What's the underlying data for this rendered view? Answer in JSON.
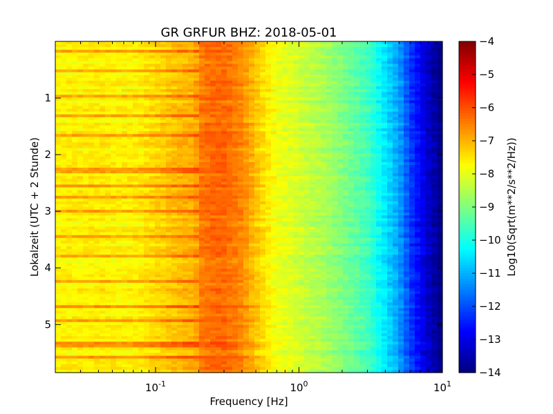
{
  "chart_data": {
    "type": "heatmap",
    "title": "GR GRFUR BHZ: 2018-05-01",
    "xlabel": "Frequency [Hz]",
    "ylabel": "Lokalzeit (UTC + 2 Stunde)",
    "colorbar_label": "Log10(Sqrt(m**2/s**2/Hz))",
    "x_scale": "log",
    "xlim": [
      0.02,
      10
    ],
    "ylim": [
      5.85,
      0
    ],
    "y_inverted": true,
    "clim": [
      -14,
      -4
    ],
    "colormap": "jet",
    "x_ticks": [
      {
        "value": 0.1,
        "base": "10",
        "exp": "-1"
      },
      {
        "value": 1,
        "base": "10",
        "exp": "0"
      },
      {
        "value": 10,
        "base": "10",
        "exp": "1"
      }
    ],
    "y_ticks": [
      {
        "value": 1,
        "label": "1"
      },
      {
        "value": 2,
        "label": "2"
      },
      {
        "value": 3,
        "label": "3"
      },
      {
        "value": 4,
        "label": "4"
      },
      {
        "value": 5,
        "label": "5"
      }
    ],
    "colorbar_ticks": [
      {
        "value": -4,
        "label": "−4"
      },
      {
        "value": -5,
        "label": "−5"
      },
      {
        "value": -6,
        "label": "−6"
      },
      {
        "value": -7,
        "label": "−7"
      },
      {
        "value": -8,
        "label": "−8"
      },
      {
        "value": -9,
        "label": "−9"
      },
      {
        "value": -10,
        "label": "−10"
      },
      {
        "value": -11,
        "label": "−11"
      },
      {
        "value": -12,
        "label": "−12"
      },
      {
        "value": -13,
        "label": "−13"
      },
      {
        "value": -14,
        "label": "−14"
      }
    ],
    "frequency_profile": [
      {
        "f": 0.02,
        "v": -7.7
      },
      {
        "f": 0.04,
        "v": -7.6
      },
      {
        "f": 0.06,
        "v": -7.7
      },
      {
        "f": 0.08,
        "v": -7.6
      },
      {
        "f": 0.1,
        "v": -7.4
      },
      {
        "f": 0.15,
        "v": -7.1
      },
      {
        "f": 0.19,
        "v": -7.0
      },
      {
        "f": 0.2,
        "v": -6.5
      },
      {
        "f": 0.25,
        "v": -6.3
      },
      {
        "f": 0.3,
        "v": -6.3
      },
      {
        "f": 0.4,
        "v": -6.6
      },
      {
        "f": 0.5,
        "v": -7.2
      },
      {
        "f": 0.7,
        "v": -7.9
      },
      {
        "f": 1.0,
        "v": -8.2
      },
      {
        "f": 1.5,
        "v": -8.6
      },
      {
        "f": 2.0,
        "v": -9.0
      },
      {
        "f": 3.0,
        "v": -9.6
      },
      {
        "f": 4.0,
        "v": -10.5
      },
      {
        "f": 5.0,
        "v": -11.2
      },
      {
        "f": 6.0,
        "v": -12.2
      },
      {
        "f": 7.0,
        "v": -12.8
      },
      {
        "f": 8.0,
        "v": -13.3
      },
      {
        "f": 9.0,
        "v": -13.7
      },
      {
        "f": 10.0,
        "v": -14.0
      }
    ],
    "noise_band_rows": [
      0.16,
      0.52,
      0.95,
      1.33,
      1.65,
      2.28,
      2.54,
      2.75,
      2.98,
      3.45,
      3.78,
      4.22,
      4.68,
      4.95,
      5.35,
      5.58
    ]
  }
}
